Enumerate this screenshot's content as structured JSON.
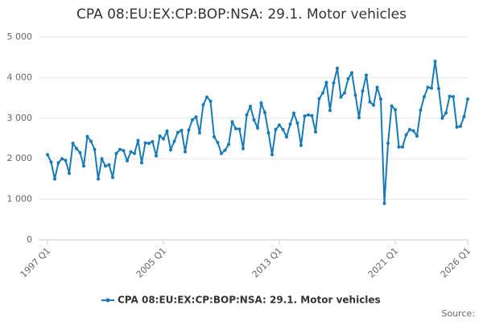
{
  "chart_data": {
    "type": "line",
    "title": "CPA 08:EU:EX:CP:BOP:NSA: 29.1. Motor vehicles",
    "source": "Source:",
    "categories": [
      "1997 Q1",
      null,
      null,
      null,
      null,
      null,
      null,
      null,
      null,
      null,
      null,
      null,
      null,
      null,
      null,
      null,
      null,
      null,
      null,
      null,
      null,
      null,
      null,
      null,
      null,
      null,
      null,
      null,
      null,
      null,
      null,
      null,
      "2005 Q1",
      null,
      null,
      null,
      null,
      null,
      null,
      null,
      null,
      null,
      null,
      null,
      null,
      null,
      null,
      null,
      null,
      null,
      null,
      null,
      null,
      null,
      null,
      null,
      null,
      null,
      null,
      null,
      null,
      null,
      null,
      null,
      "2013 Q1",
      null,
      null,
      null,
      null,
      null,
      null,
      null,
      null,
      null,
      null,
      null,
      null,
      null,
      null,
      null,
      null,
      null,
      null,
      null,
      null,
      null,
      null,
      null,
      null,
      null,
      null,
      null,
      null,
      null,
      null,
      null,
      "2021 Q1",
      null,
      null,
      null,
      null,
      null,
      null,
      null,
      null,
      null,
      null,
      null,
      null,
      null,
      null,
      null,
      null,
      null,
      null,
      null,
      "2026 Q1"
    ],
    "series": [
      {
        "name": "CPA 08:EU:EX:CP:BOP:NSA: 29.1. Motor vehicles",
        "color": "#1a7ab5",
        "values": [
          2100,
          1920,
          1500,
          1900,
          2000,
          1960,
          1640,
          2380,
          2250,
          2150,
          1820,
          2550,
          2430,
          2230,
          1500,
          2000,
          1820,
          1850,
          1540,
          2130,
          2230,
          2200,
          1950,
          2170,
          2130,
          2450,
          1900,
          2390,
          2380,
          2420,
          2070,
          2560,
          2490,
          2680,
          2220,
          2430,
          2650,
          2700,
          2170,
          2710,
          2960,
          3030,
          2640,
          3330,
          3520,
          3420,
          2540,
          2400,
          2130,
          2210,
          2350,
          2910,
          2740,
          2730,
          2250,
          3080,
          3290,
          2960,
          2760,
          3370,
          3140,
          2640,
          2100,
          2720,
          2830,
          2720,
          2540,
          2850,
          3120,
          2880,
          2330,
          3050,
          3080,
          3060,
          2660,
          3480,
          3620,
          3880,
          3190,
          3870,
          4230,
          3520,
          3620,
          3970,
          4120,
          3570,
          3010,
          3670,
          4060,
          3400,
          3320,
          3760,
          3470,
          900,
          2380,
          3300,
          3210,
          2290,
          2290,
          2590,
          2720,
          2690,
          2560,
          3200,
          3530,
          3760,
          3740,
          4400,
          3730,
          3000,
          3130,
          3540,
          3530,
          2780,
          2800,
          3040,
          3470
        ]
      }
    ],
    "ylim": [
      0,
      5000
    ],
    "yticks": [
      0,
      {
        "value": 1000,
        "label": "1 000"
      },
      {
        "value": 2000,
        "label": "2 000"
      },
      {
        "value": 3000,
        "label": "3 000"
      },
      {
        "value": 4000,
        "label": "4 000"
      },
      {
        "value": 5000,
        "label": "5 000"
      }
    ],
    "grid": true
  }
}
